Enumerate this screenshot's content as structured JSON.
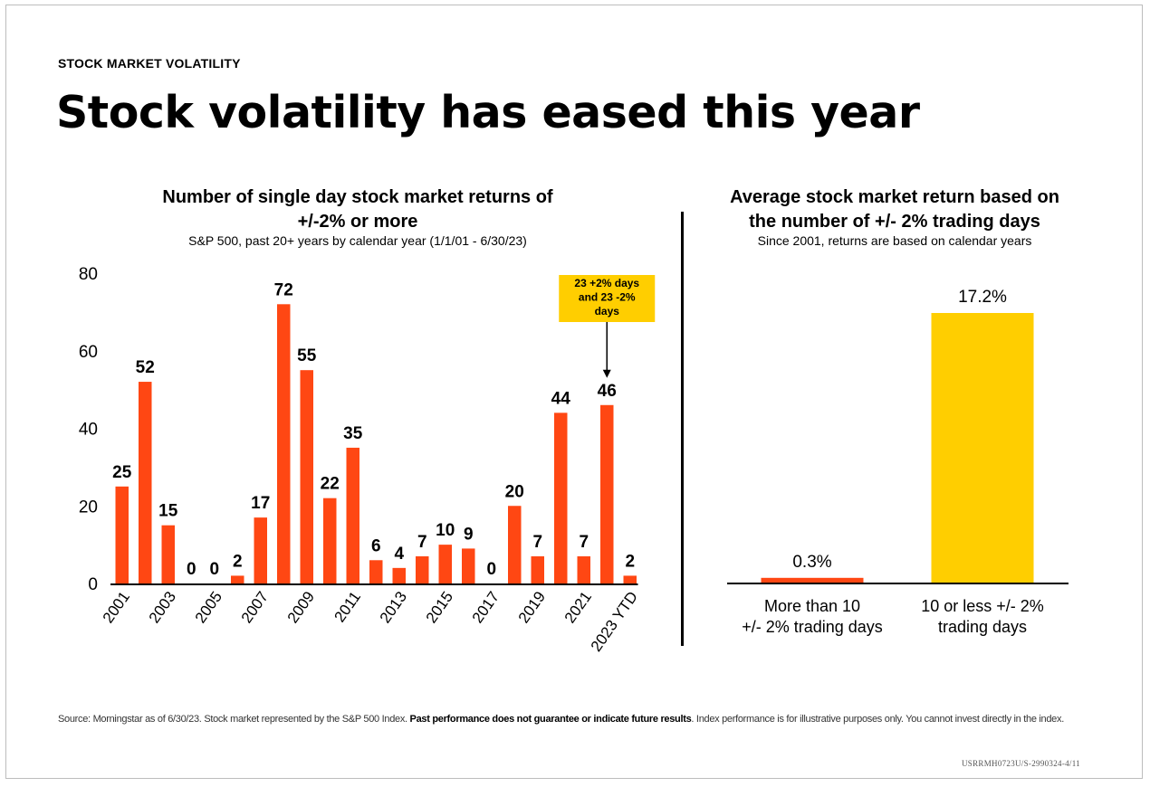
{
  "eyebrow": "STOCK MARKET VOLATILITY",
  "headline": "Stock volatility has eased this year",
  "source": {
    "pre": "Source: Morningstar as of 6/30/23. Stock market represented by the S&P 500 Index. ",
    "bold": "Past performance does not guarantee or indicate future results",
    "post": ". Index performance is for illustrative purposes only. You cannot invest directly in the index."
  },
  "code": "USRRMH0723U/S-2990324-4/11",
  "colors": {
    "bar_left": "#FF4713",
    "bar_right_small": "#FF4713",
    "bar_right_big": "#FFCE00",
    "annotation_bg": "#FFCE00"
  },
  "chart_data": [
    {
      "type": "bar",
      "title": "Number of single day stock market returns of +/-2% or more",
      "title_lines": [
        "Number of single day stock market returns of",
        "+/-2% or more"
      ],
      "subtitle": "S&P 500, past 20+ years by calendar year (1/1/01 - 6/30/23)",
      "categories": [
        "2001",
        "2002",
        "2003",
        "2004",
        "2005",
        "2006",
        "2007",
        "2008",
        "2009",
        "2010",
        "2011",
        "2012",
        "2013",
        "2014",
        "2015",
        "2016",
        "2017",
        "2018",
        "2019",
        "2020",
        "2021",
        "2022",
        "2023 YTD"
      ],
      "values": [
        25,
        52,
        15,
        0,
        0,
        2,
        17,
        72,
        55,
        22,
        35,
        6,
        4,
        7,
        10,
        9,
        0,
        20,
        7,
        44,
        7,
        46,
        2
      ],
      "tick_labels_shown": [
        "2001",
        "2003",
        "2005",
        "2007",
        "2009",
        "2011",
        "2013",
        "2015",
        "2017",
        "2019",
        "2021",
        "2023 YTD"
      ],
      "ylim": [
        0,
        80
      ],
      "yticks": [
        0,
        20,
        40,
        60,
        80
      ],
      "annotation": {
        "category": "2022",
        "lines": [
          "23 +2% days",
          "and 23 -2%",
          "days"
        ]
      },
      "grid": false,
      "xlabel": "",
      "ylabel": ""
    },
    {
      "type": "bar",
      "title": "Average stock market return based on the number of +/- 2% trading days",
      "title_lines": [
        "Average stock market return based on",
        "the number of +/- 2% trading days"
      ],
      "subtitle": "Since 2001, returns are based on calendar years",
      "categories": [
        {
          "lines": [
            "More than 10",
            "+/- 2% trading days"
          ]
        },
        {
          "lines": [
            "10 or less +/- 2%",
            "trading days"
          ]
        }
      ],
      "values": [
        0.3,
        17.2
      ],
      "value_labels": [
        "0.3%",
        "17.2%"
      ],
      "ylim": [
        0,
        18
      ],
      "grid": false,
      "xlabel": "",
      "ylabel": ""
    }
  ]
}
